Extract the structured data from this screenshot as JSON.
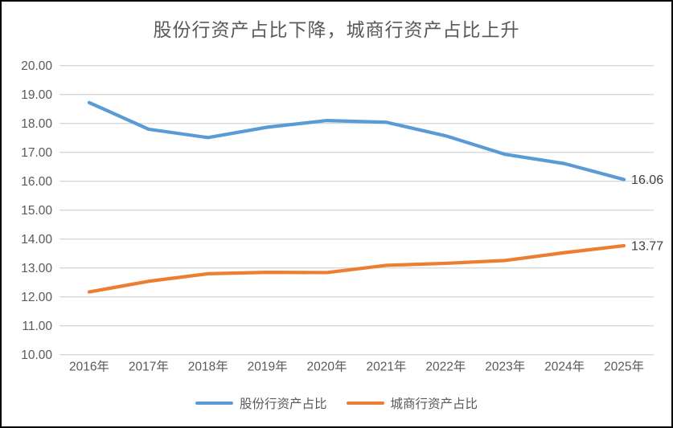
{
  "page": {
    "background": "#ffffff",
    "border_color": "#000000"
  },
  "chart_data": {
    "type": "line",
    "title": "股份行资产占比下降，城商行资产占比上升",
    "categories": [
      "2016年",
      "2017年",
      "2018年",
      "2019年",
      "2020年",
      "2021年",
      "2022年",
      "2023年",
      "2024年",
      "2025年"
    ],
    "series": [
      {
        "id": "joint-stock-banks",
        "name": "股份行资产占比",
        "color": "#5B9BD5",
        "values": [
          18.72,
          17.8,
          17.51,
          17.87,
          18.1,
          18.04,
          17.57,
          16.93,
          16.61,
          16.06
        ],
        "end_label": "16.06"
      },
      {
        "id": "city-commercial-banks",
        "name": "城商行资产占比",
        "color": "#ED7D31",
        "values": [
          12.17,
          12.54,
          12.8,
          12.85,
          12.84,
          13.09,
          13.16,
          13.26,
          13.53,
          13.77
        ],
        "end_label": "13.77"
      }
    ],
    "xlabel": "",
    "ylabel": "",
    "ylim": [
      10,
      20
    ],
    "ytick_step": 1,
    "ytick_decimals": 2,
    "grid": true,
    "legend_position": "bottom",
    "gridline_color": "#D9D9D9",
    "axis_label_color": "#595959",
    "data_label_color": "#404040"
  }
}
